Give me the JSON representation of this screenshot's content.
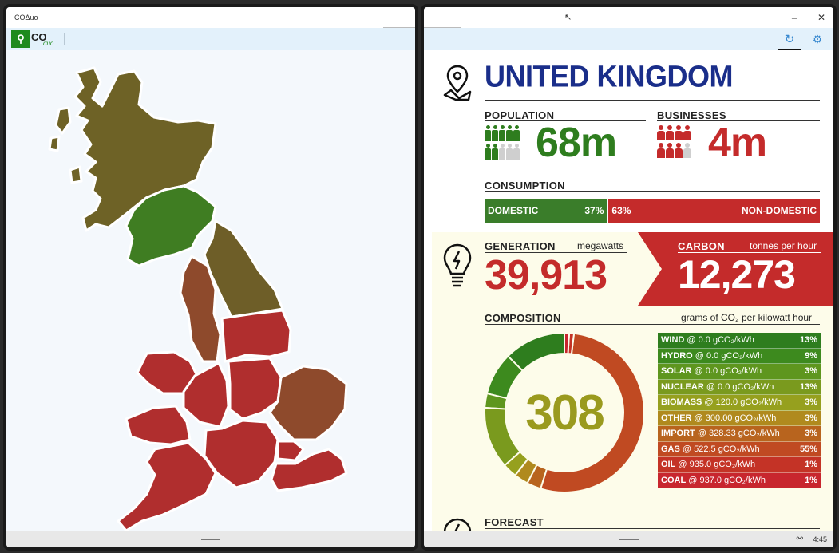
{
  "left_window": {
    "title": "COΔuo",
    "app": {
      "logo_mark": "CO",
      "logo_text": "CO",
      "logo_sub": "duo"
    },
    "regions": [
      {
        "name": "North Scotland",
        "color": "#6e6226"
      },
      {
        "name": "South Scotland",
        "color": "#3f7d22"
      },
      {
        "name": "North East England",
        "color": "#6e5e28"
      },
      {
        "name": "North West England",
        "color": "#8e4a2c"
      },
      {
        "name": "Yorkshire",
        "color": "#b02e2e"
      },
      {
        "name": "North Wales",
        "color": "#b02e2e"
      },
      {
        "name": "West Midlands",
        "color": "#b02e2e"
      },
      {
        "name": "East Midlands",
        "color": "#b02e2e"
      },
      {
        "name": "East England",
        "color": "#8e4a2c"
      },
      {
        "name": "South Wales",
        "color": "#b02e2e"
      },
      {
        "name": "South West England",
        "color": "#b02e2e"
      },
      {
        "name": "South England",
        "color": "#b02e2e"
      },
      {
        "name": "London",
        "color": "#b02e2e"
      },
      {
        "name": "South East England",
        "color": "#b02e2e"
      }
    ]
  },
  "right_window": {
    "controls": {
      "minimize": "–",
      "close": "✕"
    },
    "refresh_icon": "refresh-icon",
    "settings_icon": "gear-icon",
    "country": "UNITED KINGDOM",
    "population": {
      "label": "POPULATION",
      "value": "68m",
      "filled_fraction": 0.7
    },
    "businesses": {
      "label": "BUSINESSES",
      "value": "4m",
      "filled_fraction": 0.9
    },
    "consumption": {
      "label": "CONSUMPTION",
      "domestic_label": "DOMESTIC",
      "domestic_pct": "37%",
      "domestic_value": 37,
      "nondomestic_label": "NON-DOMESTIC",
      "nondomestic_pct": "63%",
      "nondomestic_value": 63
    },
    "generation": {
      "label": "GENERATION",
      "unit": "megawatts",
      "value": "39,913"
    },
    "carbon": {
      "label": "CARBON",
      "unit": "tonnes per hour",
      "value": "12,273"
    },
    "composition": {
      "label": "COMPOSITION",
      "unit": "grams of CO₂ per kilowatt hour",
      "intensity": "308",
      "sources": [
        {
          "name": "WIND",
          "rate": " @ 0.0 gCO₂/kWh",
          "pct": "13%",
          "value": 13,
          "color": "#2e7d1e"
        },
        {
          "name": "HYDRO",
          "rate": " @ 0.0 gCO₂/kWh",
          "pct": "9%",
          "value": 9,
          "color": "#3d8a1e"
        },
        {
          "name": "SOLAR",
          "rate": " @ 0.0 gCO₂/kWh",
          "pct": "3%",
          "value": 3,
          "color": "#5e961e"
        },
        {
          "name": "NUCLEAR",
          "rate": " @ 0.0 gCO₂/kWh",
          "pct": "13%",
          "value": 13,
          "color": "#7a9a1e"
        },
        {
          "name": "BIOMASS",
          "rate": " @ 120.0 gCO₂/kWh",
          "pct": "3%",
          "value": 3,
          "color": "#96a01e"
        },
        {
          "name": "OTHER",
          "rate": " @ 300.00 gCO₂/kWh",
          "pct": "3%",
          "value": 3,
          "color": "#b08a1e"
        },
        {
          "name": "IMPORT",
          "rate": " @ 328.33 gCO₂/kWh",
          "pct": "3%",
          "value": 3,
          "color": "#b8641e"
        },
        {
          "name": "GAS",
          "rate": " @ 522.5 gCO₂/kWh",
          "pct": "55%",
          "value": 55,
          "color": "#c04a22"
        },
        {
          "name": "OIL",
          "rate": " @ 935.0 gCO₂/kWh",
          "pct": "1%",
          "value": 1,
          "color": "#c43326"
        },
        {
          "name": "COAL",
          "rate": " @ 937.0 gCO₂/kWh",
          "pct": "1%",
          "value": 1,
          "color": "#c8262e"
        }
      ]
    },
    "forecast": {
      "label": "FORECAST"
    },
    "status": {
      "time": "4:45",
      "tray_icon": "network-icon"
    }
  }
}
